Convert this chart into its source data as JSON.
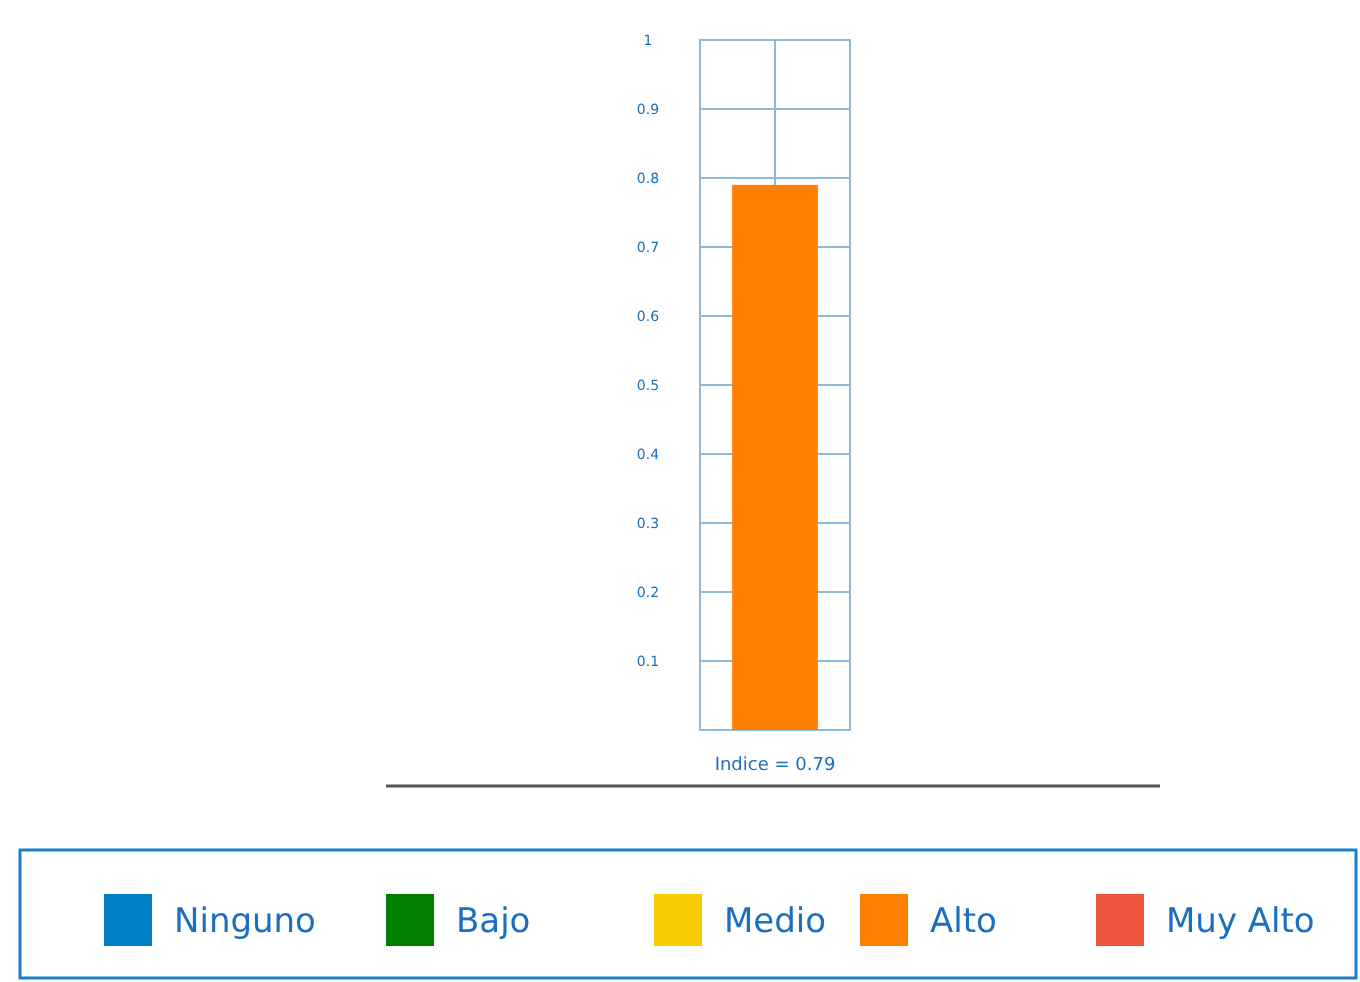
{
  "chart_data": {
    "type": "bar",
    "categories": [
      "Indice = 0.79"
    ],
    "series": [
      {
        "name": "Ninguno",
        "color": "#0080c8",
        "values": [
          null
        ]
      },
      {
        "name": "Bajo",
        "color": "#007f00",
        "values": [
          null
        ]
      },
      {
        "name": "Medio",
        "color": "#f8cc00",
        "values": [
          null
        ]
      },
      {
        "name": "Alto",
        "color": "#ff7f00",
        "values": [
          0.79
        ]
      },
      {
        "name": "Muy Alto",
        "color": "#ec543c",
        "values": [
          null
        ]
      }
    ],
    "ylim": [
      0,
      1
    ],
    "yticks": [
      0.1,
      0.2,
      0.3,
      0.4,
      0.5,
      0.6,
      0.7,
      0.8,
      0.9,
      1
    ],
    "grid": true,
    "legend": "bottom"
  }
}
